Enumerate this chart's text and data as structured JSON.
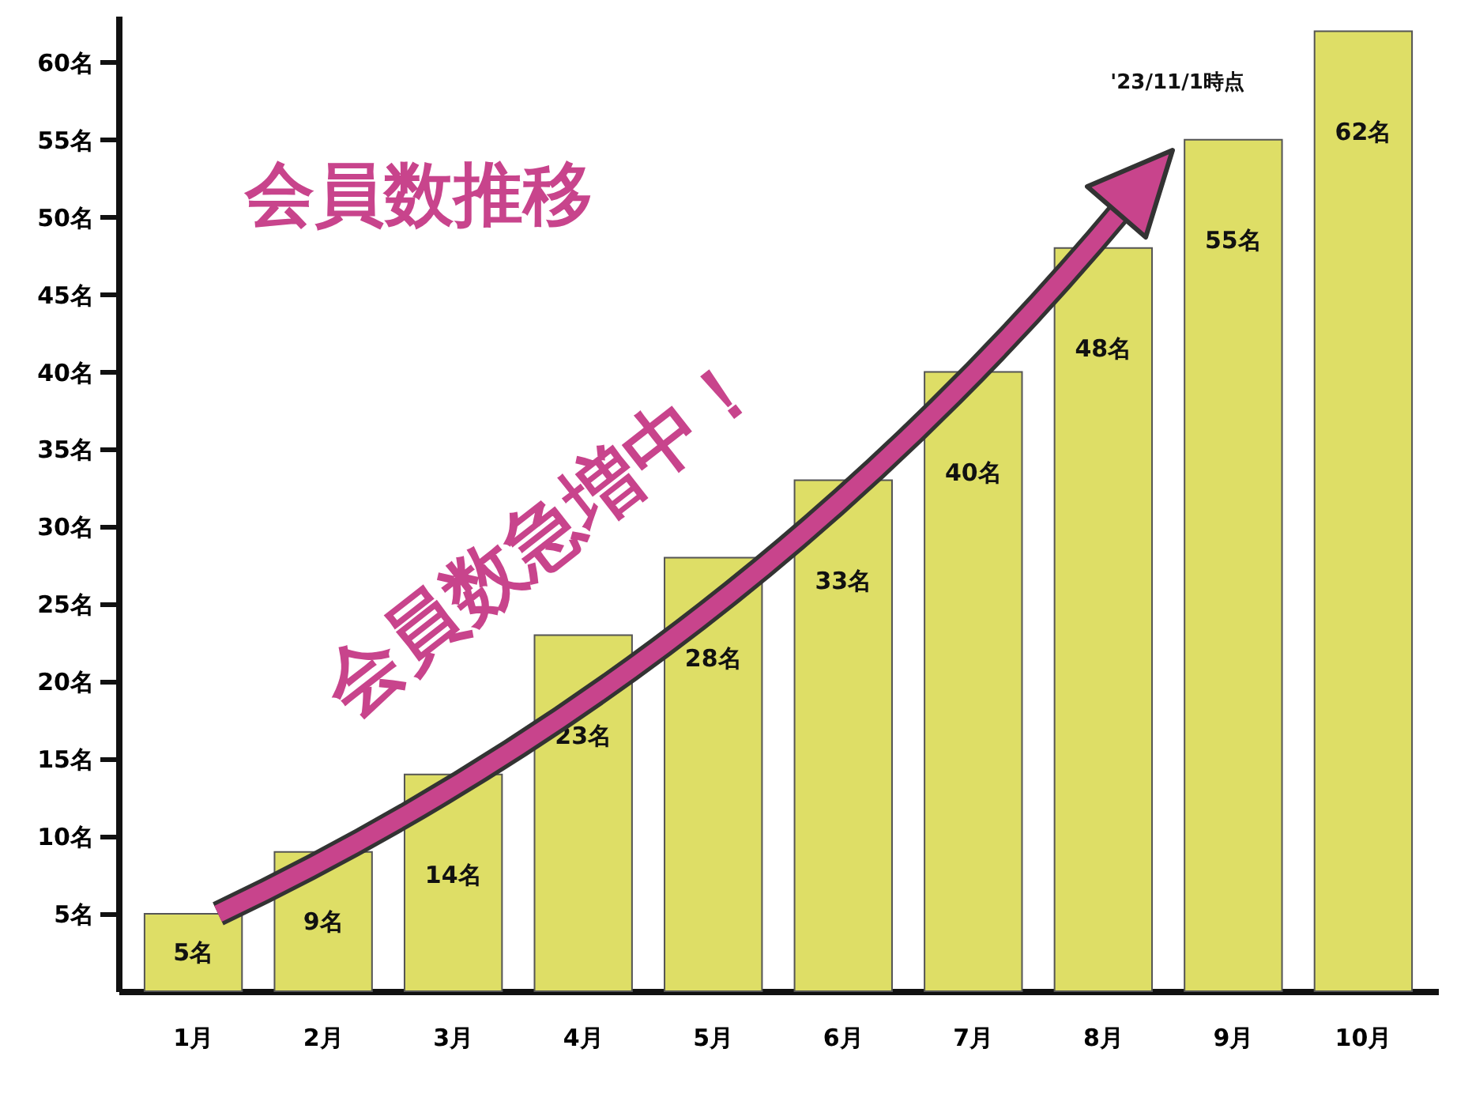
{
  "chart_data": {
    "type": "bar",
    "title": "会員数推移",
    "annotations": [
      "会員数急増中！",
      "'23/11/1時点"
    ],
    "categories": [
      "1月",
      "2月",
      "3月",
      "4月",
      "5月",
      "6月",
      "7月",
      "8月",
      "9月",
      "10月"
    ],
    "values": [
      5,
      9,
      14,
      23,
      28,
      33,
      40,
      48,
      55,
      62
    ],
    "value_labels": [
      "5名",
      "9名",
      "14名",
      "23名",
      "28名",
      "33名",
      "40名",
      "48名",
      "55名",
      "62名"
    ],
    "color": "#dede66",
    "ylim": [
      0,
      63
    ],
    "yticks": [
      {
        "value": 5,
        "label": "5名"
      },
      {
        "value": 10,
        "label": "10名"
      },
      {
        "value": 15,
        "label": "15名"
      },
      {
        "value": 20,
        "label": "20名"
      },
      {
        "value": 25,
        "label": "25名"
      },
      {
        "value": 30,
        "label": "30名"
      },
      {
        "value": 35,
        "label": "35名"
      },
      {
        "value": 40,
        "label": "40名"
      },
      {
        "value": 45,
        "label": "45名"
      },
      {
        "value": 50,
        "label": "50名"
      },
      {
        "value": 55,
        "label": "55名"
      },
      {
        "value": 60,
        "label": "60名"
      }
    ],
    "grid": false
  }
}
